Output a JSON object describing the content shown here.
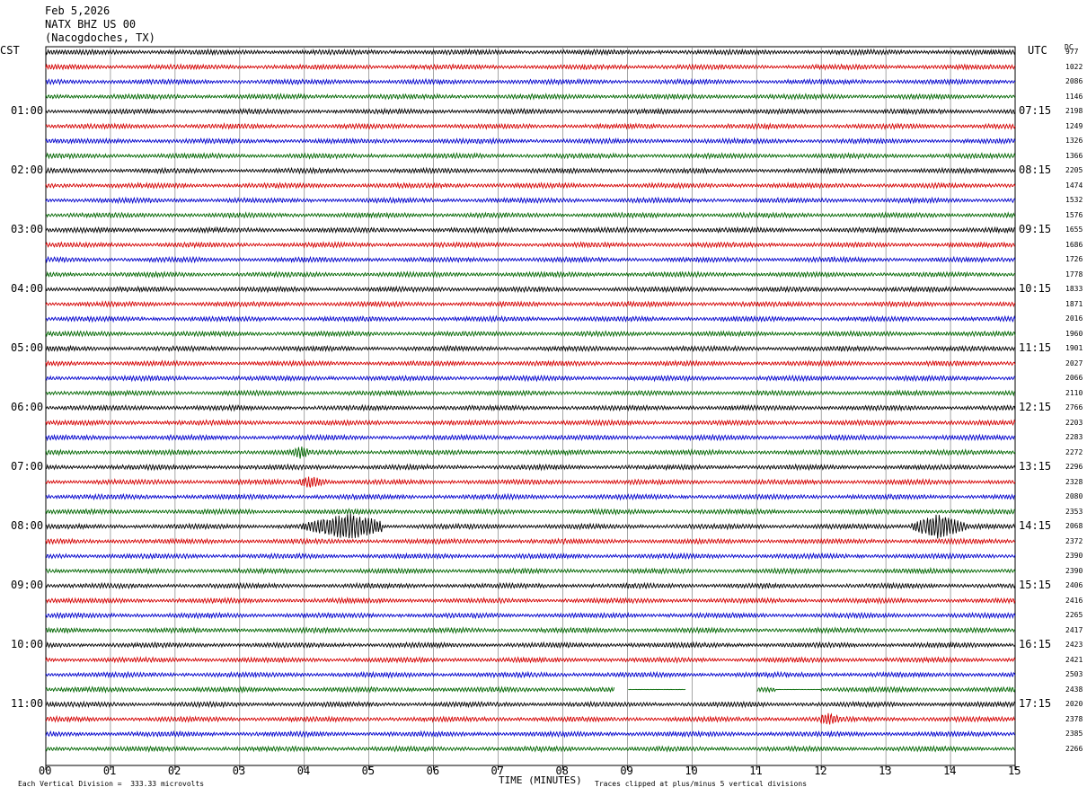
{
  "header": {
    "date": "Feb 5,2026",
    "station": "NATX BHZ US 00",
    "location": "(Nacogdoches, TX)"
  },
  "left_timezone": "CST",
  "right_timezone": "UTC",
  "dc_label": "DC",
  "x_axis_label": "TIME (MINUTES)",
  "footer": {
    "scale": "Each Vertical Division =  333.33 microvolts",
    "clip_note": "Traces clipped at plus/minus 5 vertical divisions"
  },
  "colors": {
    "trace_cycle": [
      "#000000",
      "#d40000",
      "#0000cc",
      "#006600"
    ],
    "grid": "#808080"
  },
  "chart_data": {
    "type": "line",
    "title": "NATX BHZ US 00",
    "xlabel": "TIME (MINUTES)",
    "xlim": [
      0,
      15
    ],
    "x_ticks": [
      "00",
      "01",
      "02",
      "03",
      "04",
      "05",
      "06",
      "07",
      "08",
      "09",
      "10",
      "11",
      "12",
      "13",
      "14",
      "15"
    ],
    "trace_count": 48,
    "minutes_per_trace": 15,
    "left_hour_labels": [
      {
        "trace": 4,
        "label": "01:00"
      },
      {
        "trace": 8,
        "label": "02:00"
      },
      {
        "trace": 12,
        "label": "03:00"
      },
      {
        "trace": 16,
        "label": "04:00"
      },
      {
        "trace": 20,
        "label": "05:00"
      },
      {
        "trace": 24,
        "label": "06:00"
      },
      {
        "trace": 28,
        "label": "07:00"
      },
      {
        "trace": 32,
        "label": "08:00"
      },
      {
        "trace": 36,
        "label": "09:00"
      },
      {
        "trace": 40,
        "label": "10:00"
      },
      {
        "trace": 44,
        "label": "11:00"
      }
    ],
    "right_hour_labels": [
      {
        "trace": 4,
        "label": "07:15"
      },
      {
        "trace": 8,
        "label": "08:15"
      },
      {
        "trace": 12,
        "label": "09:15"
      },
      {
        "trace": 16,
        "label": "10:15"
      },
      {
        "trace": 20,
        "label": "11:15"
      },
      {
        "trace": 24,
        "label": "12:15"
      },
      {
        "trace": 28,
        "label": "13:15"
      },
      {
        "trace": 32,
        "label": "14:15"
      },
      {
        "trace": 36,
        "label": "15:15"
      },
      {
        "trace": 40,
        "label": "16:15"
      },
      {
        "trace": 44,
        "label": "17:15"
      }
    ],
    "dc_offsets": [
      "977",
      "1022",
      "2086",
      "1146",
      "2198",
      "1249",
      "1326",
      "1366",
      "2205",
      "1474",
      "1532",
      "1576",
      "1655",
      "1686",
      "1726",
      "1778",
      "1833",
      "1871",
      "2016",
      "1960",
      "1901",
      "2027",
      "2066",
      "2110",
      "2766",
      "2203",
      "2283",
      "2272",
      "2296",
      "2328",
      "2080",
      "2353",
      "2068",
      "2372",
      "2390",
      "2390",
      "2406",
      "2416",
      "2265",
      "2417",
      "2423",
      "2421",
      "2503",
      "2438",
      "2020",
      "2378",
      "2385",
      "2266"
    ],
    "events": [
      {
        "trace": 32,
        "start_min": 3.9,
        "end_min": 5.2,
        "peak_min": 4.7,
        "label": ""
      },
      {
        "trace": 32,
        "start_min": 13.4,
        "end_min": 14.3,
        "peak_min": 13.8,
        "label": ""
      },
      {
        "trace": 29,
        "start_min": 3.9,
        "end_min": 4.4,
        "peak_min": 4.1,
        "label": ""
      },
      {
        "trace": 27,
        "start_min": 3.8,
        "end_min": 4.1,
        "peak_min": 3.95,
        "label": ""
      },
      {
        "trace": 45,
        "start_min": 12.0,
        "end_min": 12.3,
        "peak_min": 12.1,
        "label": ""
      }
    ],
    "gaps": [
      {
        "trace": 43,
        "start_min": 8.8,
        "end_min": 9.0
      },
      {
        "trace": 43,
        "start_min": 9.9,
        "end_min": 11.0
      }
    ],
    "flat_segments": [
      {
        "trace": 43,
        "start_min": 9.0,
        "end_min": 9.9
      },
      {
        "trace": 43,
        "start_min": 11.3,
        "end_min": 12.0
      }
    ],
    "grid": true
  }
}
